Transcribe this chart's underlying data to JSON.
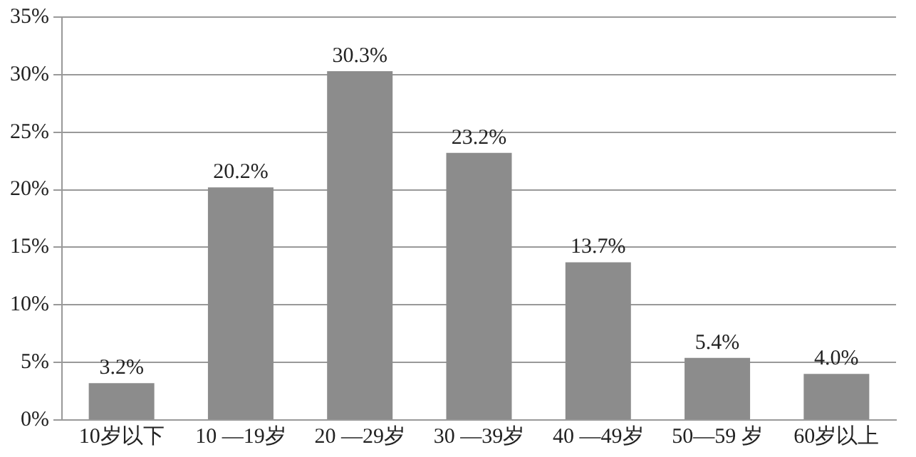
{
  "chart_data": {
    "type": "bar",
    "categories": [
      "10岁以下",
      "10 —19岁",
      "20 —29岁",
      "30 —39岁",
      "40 —49岁",
      "50—59 岁",
      "60岁以上"
    ],
    "values": [
      3.2,
      20.2,
      30.3,
      23.2,
      13.7,
      5.4,
      4.0
    ],
    "value_labels": [
      "3.2%",
      "20.2%",
      "30.3%",
      "23.2%",
      "13.7%",
      "5.4%",
      "4.0%"
    ],
    "color": "#8c8c8c",
    "ylim": [
      0,
      35
    ],
    "yticks": [
      {
        "value": 0,
        "label": "0%"
      },
      {
        "value": 5,
        "label": "5%"
      },
      {
        "value": 10,
        "label": "10%"
      },
      {
        "value": 15,
        "label": "15%"
      },
      {
        "value": 20,
        "label": "20%"
      },
      {
        "value": 25,
        "label": "25%"
      },
      {
        "value": 30,
        "label": "30%"
      },
      {
        "value": 35,
        "label": "35%"
      }
    ],
    "grid": "y"
  }
}
